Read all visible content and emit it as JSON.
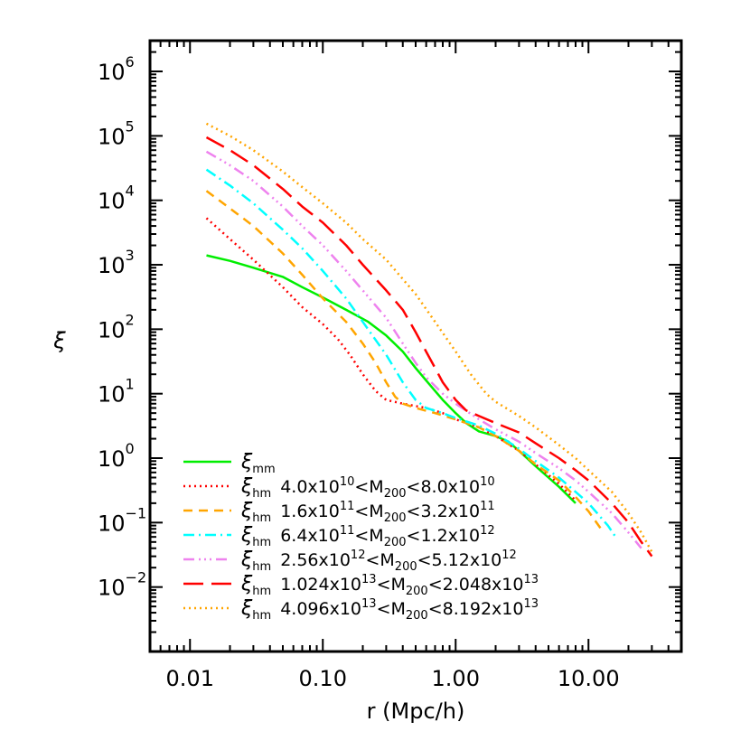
{
  "chart_data": {
    "type": "line",
    "xlabel": "r (Mpc/h)",
    "ylabel": "ξ",
    "xscale": "log",
    "yscale": "log",
    "xlim": [
      0.005,
      50
    ],
    "ylim": [
      0.001,
      3000000
    ],
    "x_ticks": [
      {
        "value": 0.01,
        "label": "0.01"
      },
      {
        "value": 0.1,
        "label": "0.10"
      },
      {
        "value": 1,
        "label": "1.00"
      },
      {
        "value": 10,
        "label": "10.00"
      }
    ],
    "y_ticks": [
      {
        "value": 0.01,
        "base": "10",
        "exp": "−2"
      },
      {
        "value": 0.1,
        "base": "10",
        "exp": "−1"
      },
      {
        "value": 1,
        "base": "10",
        "exp": "0"
      },
      {
        "value": 10,
        "base": "10",
        "exp": "1"
      },
      {
        "value": 100,
        "base": "10",
        "exp": "2"
      },
      {
        "value": 1000,
        "base": "10",
        "exp": "3"
      },
      {
        "value": 10000,
        "base": "10",
        "exp": "4"
      },
      {
        "value": 100000,
        "base": "10",
        "exp": "5"
      },
      {
        "value": 1000000,
        "base": "10",
        "exp": "6"
      }
    ],
    "legend_position": "bottom-left",
    "series": [
      {
        "name_main": "ξ",
        "name_sub": "mm",
        "name_rest": [],
        "color": "#00ee00",
        "dash": "none",
        "points": [
          [
            0.0133,
            1400
          ],
          [
            0.02,
            1150
          ],
          [
            0.03,
            900
          ],
          [
            0.05,
            650
          ],
          [
            0.07,
            450
          ],
          [
            0.1,
            310
          ],
          [
            0.15,
            200
          ],
          [
            0.22,
            130
          ],
          [
            0.3,
            80
          ],
          [
            0.4,
            45
          ],
          [
            0.5,
            25
          ],
          [
            0.6,
            16
          ],
          [
            0.7,
            11
          ],
          [
            0.8,
            8
          ],
          [
            1.0,
            5
          ],
          [
            1.2,
            3.5
          ],
          [
            1.5,
            2.6
          ],
          [
            2.0,
            2.2
          ],
          [
            2.5,
            1.8
          ],
          [
            3.0,
            1.3
          ],
          [
            4.0,
            0.75
          ],
          [
            5.0,
            0.5
          ],
          [
            6.0,
            0.36
          ],
          [
            8.0,
            0.2
          ]
        ]
      },
      {
        "name_main": "ξ",
        "name_sub": "hm",
        "name_rest": [
          [
            "n",
            "4.0x10"
          ],
          [
            "sup",
            "10"
          ],
          [
            "n",
            "<M"
          ],
          [
            "sub",
            "200"
          ],
          [
            "n",
            "<8.0x10"
          ],
          [
            "sup",
            "10"
          ]
        ],
        "color": "#ff0000",
        "dash": "2,4",
        "points": [
          [
            0.0133,
            5300
          ],
          [
            0.02,
            2500
          ],
          [
            0.03,
            1200
          ],
          [
            0.05,
            450
          ],
          [
            0.07,
            220
          ],
          [
            0.1,
            120
          ],
          [
            0.13,
            70
          ],
          [
            0.16,
            40
          ],
          [
            0.2,
            20
          ],
          [
            0.25,
            11
          ],
          [
            0.3,
            8
          ],
          [
            0.4,
            7
          ],
          [
            0.6,
            6
          ],
          [
            0.8,
            5
          ],
          [
            1.0,
            4
          ],
          [
            1.5,
            3
          ],
          [
            2.0,
            2.2
          ],
          [
            3.0,
            1.3
          ],
          [
            4.0,
            0.8
          ],
          [
            6.0,
            0.4
          ],
          [
            8.0,
            0.22
          ]
        ]
      },
      {
        "name_main": "ξ",
        "name_sub": "hm",
        "name_rest": [
          [
            "n",
            "1.6x10"
          ],
          [
            "sup",
            "11"
          ],
          [
            "n",
            "<M"
          ],
          [
            "sub",
            "200"
          ],
          [
            "n",
            "<3.2x10"
          ],
          [
            "sup",
            "11"
          ]
        ],
        "color": "#ffa500",
        "dash": "10,7",
        "points": [
          [
            0.0133,
            14000
          ],
          [
            0.02,
            7500
          ],
          [
            0.03,
            4000
          ],
          [
            0.05,
            1500
          ],
          [
            0.07,
            700
          ],
          [
            0.1,
            300
          ],
          [
            0.15,
            130
          ],
          [
            0.2,
            60
          ],
          [
            0.25,
            30
          ],
          [
            0.3,
            15
          ],
          [
            0.35,
            9
          ],
          [
            0.4,
            7
          ],
          [
            0.5,
            6
          ],
          [
            0.7,
            5
          ],
          [
            1.0,
            4
          ],
          [
            1.5,
            3
          ],
          [
            2.0,
            2.2
          ],
          [
            3.0,
            1.3
          ],
          [
            4.0,
            0.8
          ],
          [
            6.0,
            0.45
          ],
          [
            8.0,
            0.25
          ],
          [
            10.0,
            0.15
          ],
          [
            13.0,
            0.07
          ]
        ]
      },
      {
        "name_main": "ξ",
        "name_sub": "hm",
        "name_rest": [
          [
            "n",
            "6.4x10"
          ],
          [
            "sup",
            "11"
          ],
          [
            "n",
            "<M"
          ],
          [
            "sub",
            "200"
          ],
          [
            "n",
            "<1.2x10"
          ],
          [
            "sup",
            "12"
          ]
        ],
        "color": "#00ffff",
        "dash": "12,5,2,5",
        "points": [
          [
            0.0133,
            30000
          ],
          [
            0.02,
            17000
          ],
          [
            0.03,
            9000
          ],
          [
            0.05,
            3500
          ],
          [
            0.07,
            1800
          ],
          [
            0.1,
            800
          ],
          [
            0.15,
            300
          ],
          [
            0.2,
            130
          ],
          [
            0.3,
            40
          ],
          [
            0.4,
            15
          ],
          [
            0.5,
            8
          ],
          [
            0.6,
            6
          ],
          [
            0.8,
            5
          ],
          [
            1.0,
            4.2
          ],
          [
            1.5,
            3.2
          ],
          [
            2.0,
            2.4
          ],
          [
            3.0,
            1.4
          ],
          [
            4.0,
            0.9
          ],
          [
            6.0,
            0.5
          ],
          [
            8.0,
            0.3
          ],
          [
            10.0,
            0.2
          ],
          [
            14.0,
            0.09
          ],
          [
            16.0,
            0.06
          ]
        ]
      },
      {
        "name_main": "ξ",
        "name_sub": "hm",
        "name_rest": [
          [
            "n",
            "2.56x10"
          ],
          [
            "sup",
            "12"
          ],
          [
            "n",
            "<M"
          ],
          [
            "sub",
            "200"
          ],
          [
            "n",
            "<5.12x10"
          ],
          [
            "sup",
            "12"
          ]
        ],
        "color": "#ee82ee",
        "dash": "12,5,2,4,2,4,2,5",
        "points": [
          [
            0.0133,
            57000
          ],
          [
            0.02,
            35000
          ],
          [
            0.03,
            20000
          ],
          [
            0.05,
            8000
          ],
          [
            0.07,
            4000
          ],
          [
            0.1,
            2000
          ],
          [
            0.15,
            800
          ],
          [
            0.2,
            400
          ],
          [
            0.3,
            150
          ],
          [
            0.4,
            60
          ],
          [
            0.5,
            30
          ],
          [
            0.6,
            18
          ],
          [
            0.8,
            10
          ],
          [
            1.0,
            7
          ],
          [
            1.5,
            4
          ],
          [
            2.0,
            2.8
          ],
          [
            3.0,
            1.8
          ],
          [
            4.0,
            1.2
          ],
          [
            6.0,
            0.7
          ],
          [
            8.0,
            0.45
          ],
          [
            10.0,
            0.3
          ],
          [
            15.0,
            0.14
          ],
          [
            20.0,
            0.07
          ],
          [
            25.0,
            0.04
          ]
        ]
      },
      {
        "name_main": "ξ",
        "name_sub": "hm",
        "name_rest": [
          [
            "n",
            "1.024x10"
          ],
          [
            "sup",
            "13"
          ],
          [
            "n",
            "<M"
          ],
          [
            "sub",
            "200"
          ],
          [
            "n",
            "<2.048x10"
          ],
          [
            "sup",
            "13"
          ]
        ],
        "color": "#ff0000",
        "dash": "22,9",
        "points": [
          [
            0.0133,
            95000
          ],
          [
            0.02,
            60000
          ],
          [
            0.03,
            35000
          ],
          [
            0.05,
            15000
          ],
          [
            0.07,
            8000
          ],
          [
            0.1,
            4500
          ],
          [
            0.15,
            2000
          ],
          [
            0.2,
            1000
          ],
          [
            0.3,
            400
          ],
          [
            0.4,
            200
          ],
          [
            0.5,
            90
          ],
          [
            0.6,
            45
          ],
          [
            0.7,
            25
          ],
          [
            0.8,
            15
          ],
          [
            1.0,
            8
          ],
          [
            1.2,
            5.5
          ],
          [
            1.5,
            4.5
          ],
          [
            2.0,
            3.5
          ],
          [
            3.0,
            2.5
          ],
          [
            4.0,
            1.7
          ],
          [
            6.0,
            1
          ],
          [
            8.0,
            0.65
          ],
          [
            10.0,
            0.45
          ],
          [
            15.0,
            0.2
          ],
          [
            20.0,
            0.1
          ],
          [
            25.0,
            0.05
          ],
          [
            30.0,
            0.03
          ]
        ]
      },
      {
        "name_main": "ξ",
        "name_sub": "hm",
        "name_rest": [
          [
            "n",
            "4.096x10"
          ],
          [
            "sup",
            "13"
          ],
          [
            "n",
            "<M"
          ],
          [
            "sub",
            "200"
          ],
          [
            "n",
            "<8.192x10"
          ],
          [
            "sup",
            "13"
          ]
        ],
        "color": "#ffa500",
        "dash": "2,4",
        "points": [
          [
            0.0133,
            155000
          ],
          [
            0.02,
            100000
          ],
          [
            0.03,
            60000
          ],
          [
            0.05,
            28000
          ],
          [
            0.07,
            16000
          ],
          [
            0.1,
            9000
          ],
          [
            0.15,
            4500
          ],
          [
            0.2,
            2500
          ],
          [
            0.3,
            1200
          ],
          [
            0.5,
            350
          ],
          [
            0.7,
            130
          ],
          [
            1.0,
            45
          ],
          [
            1.3,
            20
          ],
          [
            1.7,
            10
          ],
          [
            2.0,
            7.5
          ],
          [
            3.0,
            4.5
          ],
          [
            4.0,
            3
          ],
          [
            6.0,
            1.6
          ],
          [
            8.0,
            1
          ],
          [
            10.0,
            0.65
          ],
          [
            15.0,
            0.3
          ],
          [
            20.0,
            0.14
          ],
          [
            25.0,
            0.07
          ],
          [
            30.0,
            0.035
          ]
        ]
      }
    ]
  }
}
